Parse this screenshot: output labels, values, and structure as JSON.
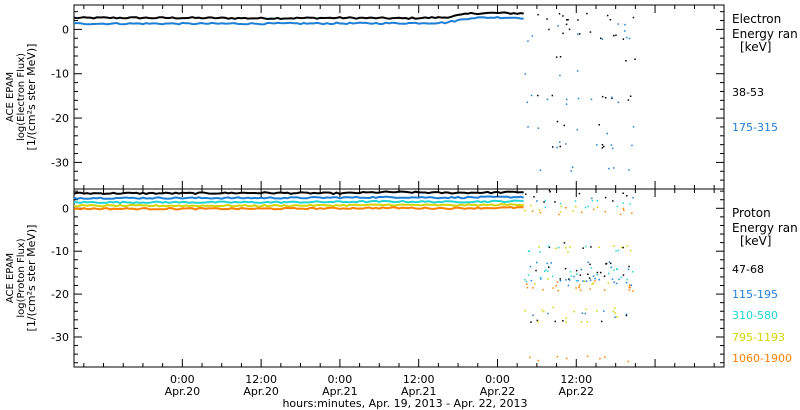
{
  "chart_data": [
    {
      "type": "scatter",
      "title": "",
      "ylabel_lines": [
        "ACE EPAM",
        "log(Electron Flux)",
        "[1/(cm²s ster MeV)]"
      ],
      "ylim": [
        -36,
        5.5
      ],
      "yticks": [
        0,
        -10,
        -20,
        -30
      ],
      "legend_title": [
        "Electron",
        "Energy ran",
        "[keV]"
      ],
      "series": [
        {
          "name": "38-53",
          "color": "#000000",
          "base": [
            [
              0,
              2.6
            ],
            [
              12,
              2.5
            ],
            [
              24,
              2.6
            ],
            [
              34,
              2.5
            ],
            [
              40,
              2.7
            ],
            [
              44,
              3.6
            ],
            [
              48,
              3.7
            ],
            [
              56,
              3.5
            ],
            [
              60,
              3.4
            ]
          ],
          "burst": [
            3.0,
            1.6,
            -1.2,
            -0.6,
            -15.6,
            -26,
            -6.5,
            -21
          ]
        },
        {
          "name": "175-315",
          "color": "#1e7fd6",
          "base": [
            [
              0,
              1.3
            ],
            [
              12,
              1.3
            ],
            [
              24,
              1.35
            ],
            [
              34,
              1.4
            ],
            [
              40,
              1.5
            ],
            [
              44,
              2.6
            ],
            [
              48,
              2.7
            ],
            [
              56,
              2.5
            ],
            [
              60,
              2.4
            ]
          ],
          "burst": [
            1.2,
            -1.0,
            -15.5,
            -16,
            -25.8,
            -22.5,
            -9.5,
            -31,
            -2.5
          ]
        }
      ]
    },
    {
      "type": "scatter",
      "title": "",
      "ylabel_lines": [
        "ACE EPAM",
        "log(Proton Flux)",
        "[1/(cm²s ster MeV)]"
      ],
      "ylim": [
        -37,
        4.5
      ],
      "yticks": [
        0,
        -10,
        -20,
        -30
      ],
      "legend_title": [
        "Proton",
        "Energy ran",
        "[keV]"
      ],
      "series": [
        {
          "name": "47-68",
          "color": "#000000",
          "base": [
            [
              0,
              3.5
            ],
            [
              12,
              3.6
            ],
            [
              24,
              3.5
            ],
            [
              32,
              3.8
            ],
            [
              40,
              3.6
            ],
            [
              48,
              3.7
            ],
            [
              56,
              3.9
            ],
            [
              60,
              3.6
            ]
          ],
          "burst": [
            3.5,
            1.5,
            -8.5,
            -13.5,
            -15.5,
            -25.5
          ]
        },
        {
          "name": "115-195",
          "color": "#1e7fd6",
          "base": [
            [
              0,
              2.4
            ],
            [
              12,
              2.4
            ],
            [
              24,
              2.5
            ],
            [
              32,
              2.6
            ],
            [
              40,
              2.5
            ],
            [
              48,
              2.6
            ],
            [
              56,
              2.7
            ],
            [
              60,
              2.5
            ]
          ],
          "burst": [
            2.4,
            -13.2,
            -16.5,
            -17,
            -24.5
          ]
        },
        {
          "name": "310-580",
          "color": "#22d4d4",
          "base": [
            [
              0,
              1.4
            ],
            [
              12,
              1.4
            ],
            [
              24,
              1.5
            ],
            [
              32,
              1.6
            ],
            [
              40,
              1.5
            ],
            [
              48,
              1.6
            ],
            [
              56,
              1.8
            ],
            [
              60,
              1.6
            ]
          ],
          "burst": [
            1.2,
            -14.5,
            -16,
            -9.2
          ]
        },
        {
          "name": "795-1193",
          "color": "#d4d400",
          "base": [
            [
              0,
              0.6
            ],
            [
              12,
              0.6
            ],
            [
              24,
              0.7
            ],
            [
              32,
              0.8
            ],
            [
              40,
              0.7
            ],
            [
              48,
              0.8
            ],
            [
              56,
              1.0
            ],
            [
              60,
              0.8
            ]
          ],
          "burst": [
            0.2,
            -9.5,
            -17,
            -23.5,
            -26
          ]
        },
        {
          "name": "1060-1900",
          "color": "#ff8000",
          "base": [
            [
              0,
              -0.1
            ],
            [
              12,
              -0.1
            ],
            [
              24,
              0.0
            ],
            [
              32,
              0.1
            ],
            [
              40,
              0.0
            ],
            [
              48,
              0.1
            ],
            [
              56,
              0.3
            ],
            [
              60,
              0.2
            ]
          ],
          "burst": [
            -0.5,
            -17.5,
            -18.5,
            -35
          ]
        }
      ]
    }
  ],
  "x_axis": {
    "range_hours": [
      -16.5,
      82.5
    ],
    "data_end_hours": 70,
    "major_ticks": [
      0,
      12,
      24,
      36,
      48,
      60,
      72
    ],
    "minor_step_hours": 3,
    "tick_labels": [
      {
        "hours": 0,
        "time": "0:00",
        "date": "Apr.20"
      },
      {
        "hours": 12,
        "time": "12:00",
        "date": "Apr.20"
      },
      {
        "hours": 24,
        "time": "0:00",
        "date": "Apr.21"
      },
      {
        "hours": 36,
        "time": "12:00",
        "date": "Apr.21"
      },
      {
        "hours": 48,
        "time": "0:00",
        "date": "Apr.22"
      },
      {
        "hours": 60,
        "time": "12:00",
        "date": "Apr.22"
      }
    ],
    "label": "hours:minutes, Apr. 19, 2013 - Apr. 22, 2013"
  }
}
